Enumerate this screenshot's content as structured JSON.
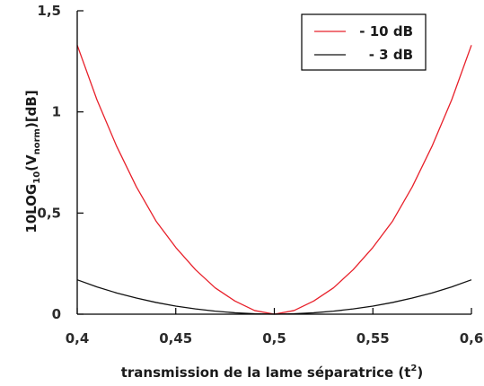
{
  "chart_data": {
    "type": "line",
    "xlabel": "transmission de la lame séparatrice (t",
    "xlabel_superscript": "2",
    "xlabel_suffix": ")",
    "ylabel_parts": [
      {
        "text": "10LOG",
        "kind": "normal"
      },
      {
        "text": "10",
        "kind": "sub"
      },
      {
        "text": "(V",
        "kind": "normal"
      },
      {
        "text": "norm",
        "kind": "sub"
      },
      {
        "text": ")[dB]",
        "kind": "normal"
      }
    ],
    "xlim": [
      0.4,
      0.6
    ],
    "ylim": [
      0,
      1.5
    ],
    "x_ticks": [
      0.4,
      0.45,
      0.5,
      0.55,
      0.6
    ],
    "x_tick_labels": [
      "0,4",
      "0,45",
      "0,5",
      "0,55",
      "0,6"
    ],
    "y_ticks": [
      0,
      0.5,
      1,
      1.5
    ],
    "y_tick_labels": [
      "0",
      "0,5",
      "1",
      "1,5"
    ],
    "grid": false,
    "legend_position": "top-right",
    "x": [
      0.4,
      0.41,
      0.42,
      0.43,
      0.44,
      0.45,
      0.46,
      0.47,
      0.48,
      0.49,
      0.5,
      0.51,
      0.52,
      0.53,
      0.54,
      0.55,
      0.56,
      0.57,
      0.58,
      0.59,
      0.6
    ],
    "series": [
      {
        "name": "- 10 dB",
        "color": "#e8202a",
        "values": [
          1.33,
          1.06,
          0.83,
          0.63,
          0.46,
          0.33,
          0.22,
          0.13,
          0.065,
          0.018,
          0.0,
          0.018,
          0.065,
          0.13,
          0.22,
          0.33,
          0.46,
          0.63,
          0.83,
          1.06,
          1.33
        ]
      },
      {
        "name": "- 3 dB",
        "color": "#111111",
        "values": [
          0.17,
          0.135,
          0.105,
          0.08,
          0.058,
          0.04,
          0.026,
          0.015,
          0.007,
          0.002,
          0.0,
          0.002,
          0.007,
          0.015,
          0.026,
          0.04,
          0.058,
          0.08,
          0.105,
          0.135,
          0.17
        ]
      }
    ]
  }
}
